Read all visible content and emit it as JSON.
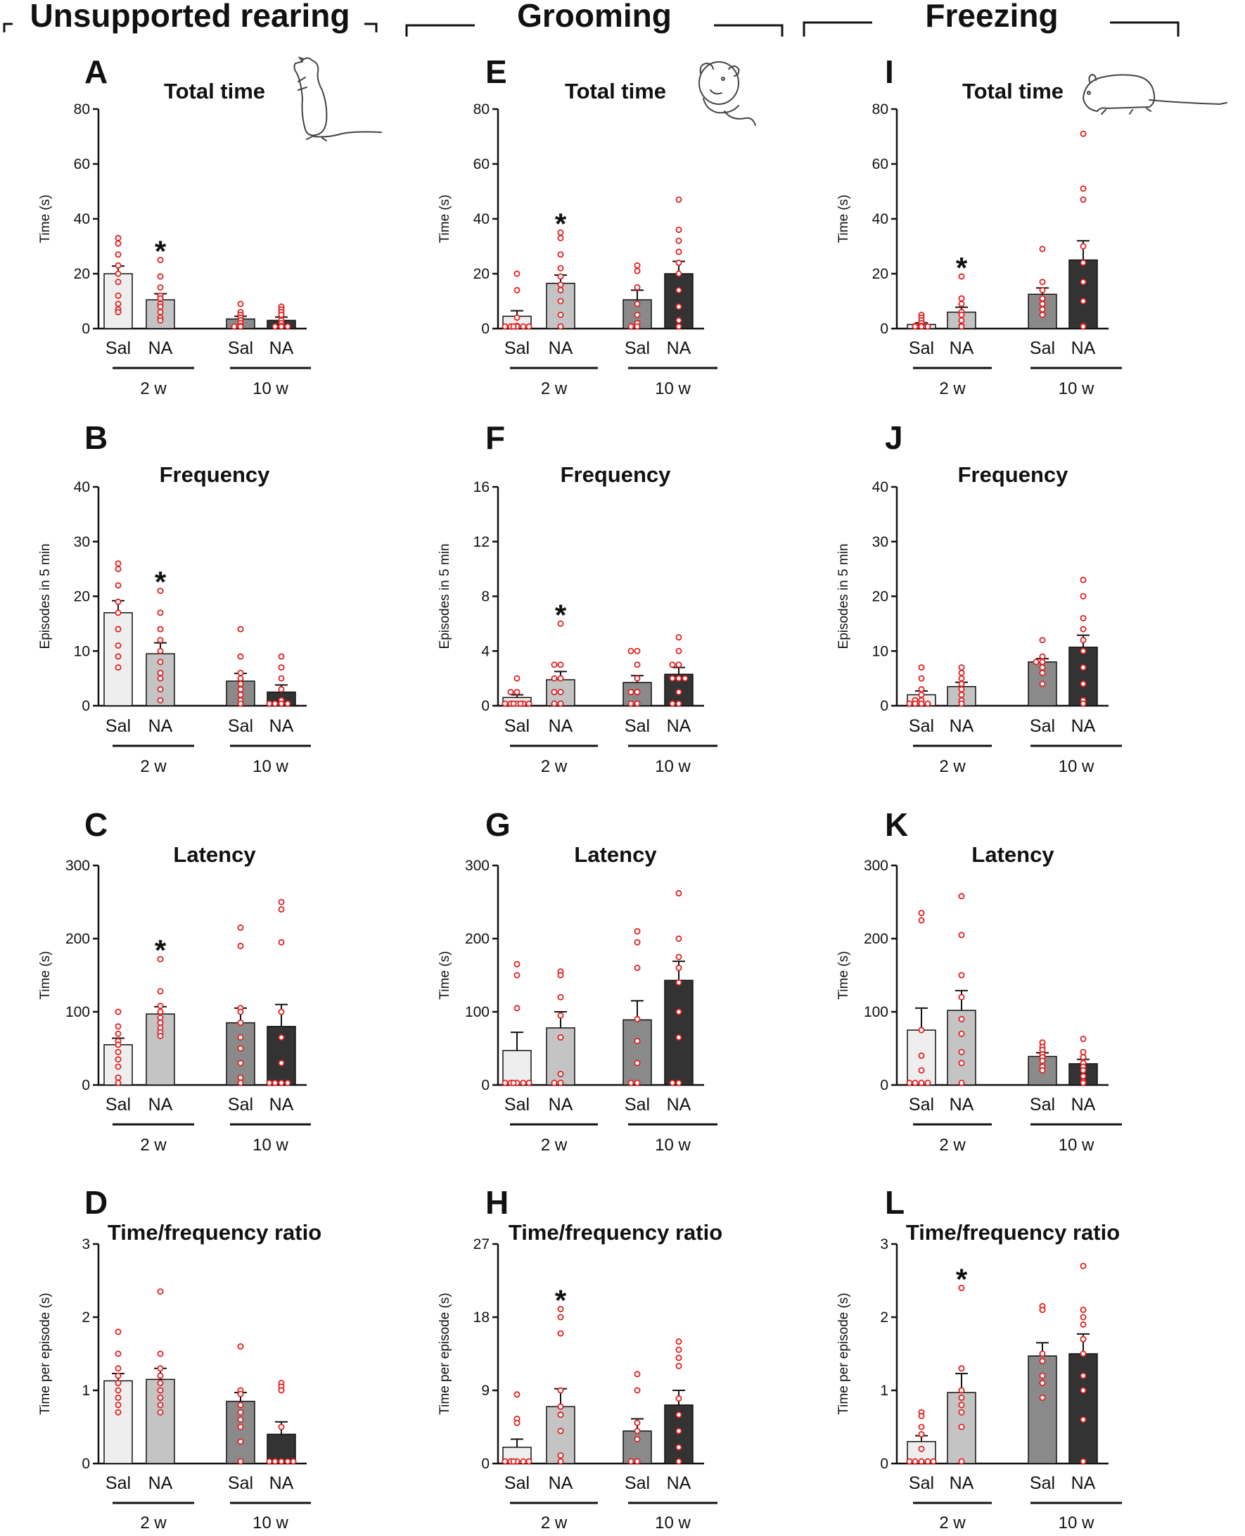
{
  "columns": [
    {
      "title": "Unsupported rearing",
      "icon": "rearing-rat-icon"
    },
    {
      "title": "Grooming",
      "icon": "grooming-mouse-icon"
    },
    {
      "title": "Freezing",
      "icon": "freezing-rat-icon"
    }
  ],
  "groups": [
    "2 w",
    "10 w"
  ],
  "group_categories": [
    "Sal",
    "NA"
  ],
  "colors": {
    "bar_fills": [
      "#eeeeee",
      "#c4c4c4",
      "#8a8a8a",
      "#333333"
    ],
    "point_color": "#e02020",
    "axis_color": "#111111"
  },
  "chart_data": [
    {
      "panel": "A",
      "type": "bar",
      "title": "Total time",
      "ylabel": "Time (s)",
      "ylim": [
        0,
        80
      ],
      "yticks": [
        0,
        20,
        40,
        60,
        80
      ],
      "categories": [
        "Sal",
        "NA",
        "Sal",
        "NA"
      ],
      "groups": [
        "2 w",
        "10 w"
      ],
      "values": [
        20,
        10.5,
        3.5,
        3
      ],
      "sem": [
        2.8,
        2.2,
        1.0,
        1.2
      ],
      "significant": [
        false,
        true,
        false,
        false
      ],
      "points": [
        [
          33,
          31,
          27,
          23,
          20,
          17,
          12,
          9,
          7,
          6
        ],
        [
          25,
          19,
          15,
          12,
          11,
          9,
          8,
          6,
          4,
          3
        ],
        [
          9,
          6,
          5,
          4,
          3,
          2,
          1,
          0.5,
          0,
          0
        ],
        [
          8,
          7,
          6,
          5,
          3,
          2,
          1,
          0,
          0,
          0
        ]
      ]
    },
    {
      "panel": "B",
      "type": "bar",
      "title": "Frequency",
      "ylabel": "Episodes in 5 min",
      "ylim": [
        0,
        40
      ],
      "yticks": [
        0,
        10,
        20,
        30,
        40
      ],
      "categories": [
        "Sal",
        "NA",
        "Sal",
        "NA"
      ],
      "groups": [
        "2 w",
        "10 w"
      ],
      "values": [
        17,
        9.5,
        4.5,
        2.5
      ],
      "sem": [
        2.2,
        2.0,
        1.4,
        1.3
      ],
      "significant": [
        false,
        true,
        false,
        false
      ],
      "points": [
        [
          26,
          25,
          22,
          19,
          17,
          14,
          11,
          9,
          7
        ],
        [
          21,
          17,
          14,
          12,
          10,
          8,
          6,
          5,
          3,
          1
        ],
        [
          14,
          9,
          6,
          5,
          4,
          3,
          2,
          1,
          0
        ],
        [
          9,
          7,
          5,
          3,
          1,
          0,
          0,
          0,
          0
        ]
      ]
    },
    {
      "panel": "C",
      "type": "bar",
      "title": "Latency",
      "ylabel": "Time (s)",
      "ylim": [
        0,
        300
      ],
      "yticks": [
        0,
        100,
        200,
        300
      ],
      "categories": [
        "Sal",
        "NA",
        "Sal",
        "NA"
      ],
      "groups": [
        "2 w",
        "10 w"
      ],
      "values": [
        55,
        97,
        85,
        80
      ],
      "sem": [
        9,
        10,
        20,
        30
      ],
      "significant": [
        false,
        true,
        false,
        false
      ],
      "points": [
        [
          100,
          80,
          70,
          60,
          55,
          45,
          35,
          25,
          10,
          2
        ],
        [
          172,
          128,
          108,
          100,
          92,
          85,
          78,
          72,
          67
        ],
        [
          215,
          190,
          105,
          100,
          85,
          65,
          50,
          30,
          10,
          0
        ],
        [
          250,
          240,
          195,
          100,
          65,
          30,
          0,
          0,
          0,
          0
        ]
      ]
    },
    {
      "panel": "D",
      "type": "bar",
      "title": "Time/frequency ratio",
      "ylabel": "Time per episode (s)",
      "ylim": [
        0,
        3
      ],
      "yticks": [
        0,
        1,
        2,
        3
      ],
      "categories": [
        "Sal",
        "NA",
        "Sal",
        "NA"
      ],
      "groups": [
        "2 w",
        "10 w"
      ],
      "values": [
        1.13,
        1.15,
        0.85,
        0.4
      ],
      "sem": [
        0.1,
        0.15,
        0.12,
        0.17
      ],
      "significant": [
        false,
        false,
        false,
        false
      ],
      "points": [
        [
          1.8,
          1.5,
          1.3,
          1.2,
          1.1,
          1.0,
          0.9,
          0.8,
          0.7
        ],
        [
          2.35,
          1.5,
          1.3,
          1.2,
          1.1,
          1.0,
          0.9,
          0.8,
          0.7
        ],
        [
          1.6,
          1.0,
          0.95,
          0.8,
          0.7,
          0.6,
          0.5,
          0.3,
          0
        ],
        [
          1.1,
          1.05,
          1.0,
          0.5,
          0,
          0,
          0,
          0,
          0
        ]
      ]
    },
    {
      "panel": "E",
      "type": "bar",
      "title": "Total time",
      "ylabel": "Time (s)",
      "ylim": [
        0,
        80
      ],
      "yticks": [
        0,
        20,
        40,
        60,
        80
      ],
      "categories": [
        "Sal",
        "NA",
        "Sal",
        "NA"
      ],
      "groups": [
        "2 w",
        "10 w"
      ],
      "values": [
        4.5,
        16.5,
        10.5,
        20
      ],
      "sem": [
        2,
        3,
        3.5,
        4.5
      ],
      "significant": [
        false,
        true,
        false,
        false
      ],
      "points": [
        [
          20,
          14,
          4,
          1,
          0,
          0,
          0,
          0,
          0,
          0
        ],
        [
          35,
          33,
          27,
          22,
          19,
          16,
          14,
          10,
          5,
          0
        ],
        [
          23,
          21,
          15,
          9,
          5,
          2,
          0,
          0
        ],
        [
          47,
          36,
          32,
          28,
          24,
          20,
          14,
          8,
          3,
          0
        ]
      ]
    },
    {
      "panel": "F",
      "type": "bar",
      "title": "Frequency",
      "ylabel": "Episodes in 5 min",
      "ylim": [
        0,
        16
      ],
      "yticks": [
        0,
        4,
        8,
        12,
        16
      ],
      "categories": [
        "Sal",
        "NA",
        "Sal",
        "NA"
      ],
      "groups": [
        "2 w",
        "10 w"
      ],
      "values": [
        0.6,
        1.9,
        1.7,
        2.3
      ],
      "sem": [
        0.2,
        0.6,
        0.5,
        0.5
      ],
      "significant": [
        false,
        true,
        false,
        false
      ],
      "points": [
        [
          2,
          1,
          1,
          0,
          0,
          0,
          0,
          0,
          0,
          0
        ],
        [
          6,
          3,
          3,
          2,
          2,
          1,
          1,
          0,
          0
        ],
        [
          4,
          4,
          3,
          2,
          1,
          1,
          0,
          0
        ],
        [
          5,
          4,
          3,
          3,
          2,
          2,
          2,
          1,
          0,
          0
        ]
      ]
    },
    {
      "panel": "G",
      "type": "bar",
      "title": "Latency",
      "ylabel": "Time (s)",
      "ylim": [
        0,
        300
      ],
      "yticks": [
        0,
        100,
        200,
        300
      ],
      "categories": [
        "Sal",
        "NA",
        "Sal",
        "NA"
      ],
      "groups": [
        "2 w",
        "10 w"
      ],
      "values": [
        47,
        78,
        89,
        143
      ],
      "sem": [
        25,
        22,
        26,
        26
      ],
      "significant": [
        false,
        false,
        false,
        false
      ],
      "points": [
        [
          165,
          150,
          105,
          0,
          0,
          0,
          0,
          0,
          0
        ],
        [
          155,
          150,
          120,
          95,
          65,
          15,
          0,
          0
        ],
        [
          210,
          195,
          160,
          90,
          60,
          30,
          0,
          0
        ],
        [
          262,
          200,
          175,
          160,
          140,
          100,
          65,
          0,
          0
        ]
      ]
    },
    {
      "panel": "H",
      "type": "bar",
      "title": "Time/frequency ratio",
      "ylabel": "Time per episode (s)",
      "ylim": [
        0,
        27
      ],
      "yticks": [
        0,
        9,
        18,
        27
      ],
      "categories": [
        "Sal",
        "NA",
        "Sal",
        "NA"
      ],
      "groups": [
        "2 w",
        "10 w"
      ],
      "values": [
        2,
        7,
        4,
        7.2
      ],
      "sem": [
        1,
        2.2,
        1.5,
        1.8
      ],
      "significant": [
        false,
        true,
        false,
        false
      ],
      "points": [
        [
          8.5,
          5.5,
          5,
          0,
          0,
          0,
          0,
          0,
          0
        ],
        [
          19,
          18,
          16,
          9,
          7,
          6,
          4,
          1,
          0
        ],
        [
          11,
          9,
          5,
          4,
          3,
          0,
          0
        ],
        [
          15,
          14,
          13,
          12,
          8,
          6,
          4,
          2,
          0
        ]
      ]
    },
    {
      "panel": "I",
      "type": "bar",
      "title": "Total time",
      "ylabel": "Time (s)",
      "ylim": [
        0,
        80
      ],
      "yticks": [
        0,
        20,
        40,
        60,
        80
      ],
      "categories": [
        "Sal",
        "NA",
        "Sal",
        "NA"
      ],
      "groups": [
        "2 w",
        "10 w"
      ],
      "values": [
        1.5,
        6,
        12.5,
        25
      ],
      "sem": [
        0.6,
        1.8,
        2.3,
        7
      ],
      "significant": [
        false,
        true,
        false,
        false
      ],
      "points": [
        [
          5,
          4,
          3,
          2,
          1,
          1,
          0,
          0,
          0
        ],
        [
          19,
          11,
          9,
          6,
          5,
          3,
          1,
          0
        ],
        [
          29,
          17,
          14,
          11,
          9,
          7,
          5
        ],
        [
          71,
          51,
          47,
          30,
          24,
          17,
          10,
          1,
          0
        ]
      ]
    },
    {
      "panel": "J",
      "type": "bar",
      "title": "Frequency",
      "ylabel": "Episodes in 5 min",
      "ylim": [
        0,
        40
      ],
      "yticks": [
        0,
        10,
        20,
        30,
        40
      ],
      "categories": [
        "Sal",
        "NA",
        "Sal",
        "NA"
      ],
      "groups": [
        "2 w",
        "10 w"
      ],
      "values": [
        2,
        3.5,
        8,
        10.7
      ],
      "sem": [
        0.7,
        0.8,
        0.6,
        2.2
      ],
      "significant": [
        false,
        false,
        false,
        false
      ],
      "points": [
        [
          7,
          5,
          3,
          2,
          1,
          1,
          0,
          0,
          0,
          0
        ],
        [
          7,
          6,
          5,
          4,
          3,
          2,
          1,
          0
        ],
        [
          12,
          9,
          8,
          8,
          7,
          6,
          4
        ],
        [
          23,
          20,
          16,
          14,
          12,
          10,
          7,
          4,
          1,
          0
        ]
      ]
    },
    {
      "panel": "K",
      "type": "bar",
      "title": "Latency",
      "ylabel": "Time (s)",
      "ylim": [
        0,
        300
      ],
      "yticks": [
        0,
        100,
        200,
        300
      ],
      "categories": [
        "Sal",
        "NA",
        "Sal",
        "NA"
      ],
      "groups": [
        "2 w",
        "10 w"
      ],
      "values": [
        75,
        102,
        39,
        29
      ],
      "sem": [
        30,
        27,
        5,
        6
      ],
      "significant": [
        false,
        false,
        false,
        false
      ],
      "points": [
        [
          235,
          225,
          75,
          40,
          20,
          0,
          0,
          0,
          0
        ],
        [
          258,
          205,
          150,
          120,
          90,
          70,
          45,
          30,
          0
        ],
        [
          58,
          52,
          48,
          42,
          38,
          33,
          25,
          20
        ],
        [
          63,
          45,
          38,
          30,
          25,
          20,
          12,
          5,
          0
        ]
      ]
    },
    {
      "panel": "L",
      "type": "bar",
      "title": "Time/frequency ratio",
      "ylabel": "Time per episode (s)",
      "ylim": [
        0,
        3
      ],
      "yticks": [
        0,
        1,
        2,
        3
      ],
      "categories": [
        "Sal",
        "NA",
        "Sal",
        "NA"
      ],
      "groups": [
        "2 w",
        "10 w"
      ],
      "values": [
        0.3,
        0.97,
        1.47,
        1.5
      ],
      "sem": [
        0.08,
        0.26,
        0.18,
        0.27
      ],
      "significant": [
        false,
        true,
        false,
        false
      ],
      "points": [
        [
          0.7,
          0.65,
          0.5,
          0.4,
          0.2,
          0,
          0,
          0,
          0,
          0
        ],
        [
          2.4,
          1.3,
          1.0,
          0.9,
          0.8,
          0.7,
          0.5,
          0
        ],
        [
          2.15,
          2.1,
          1.5,
          1.4,
          1.2,
          1.1,
          0.9
        ],
        [
          2.7,
          2.1,
          2.0,
          1.9,
          1.7,
          1.5,
          1.2,
          1.0,
          0.6,
          0
        ]
      ]
    }
  ]
}
